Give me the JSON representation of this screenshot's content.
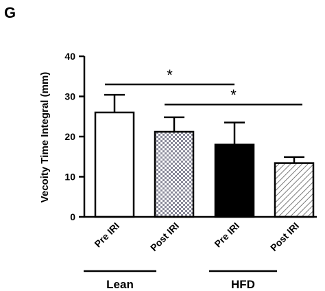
{
  "panel_label": "G",
  "chart_data": {
    "type": "bar",
    "title": "",
    "xlabel": "",
    "ylabel": "Vecoity Time Integral (mm)",
    "ylim": [
      0,
      40
    ],
    "yticks": [
      0,
      10,
      20,
      30,
      40
    ],
    "grid": false,
    "categories": [
      "Pre IRI",
      "Post IRI",
      "Pre IRI",
      "Post IRI"
    ],
    "values": [
      26,
      21.2,
      18,
      13.4
    ],
    "error_upper": [
      30.4,
      24.8,
      23.5,
      14.9
    ],
    "fill_patterns": [
      "white",
      "checkered",
      "black",
      "hatched"
    ],
    "groups": [
      {
        "label": "Lean",
        "categories": [
          0,
          1
        ]
      },
      {
        "label": "HFD",
        "categories": [
          2,
          3
        ]
      }
    ],
    "annotations": [
      {
        "from": 0,
        "to": 2,
        "y": 33,
        "label": "*"
      },
      {
        "from": 1,
        "to": 3,
        "y": 28,
        "label": "*"
      }
    ]
  }
}
